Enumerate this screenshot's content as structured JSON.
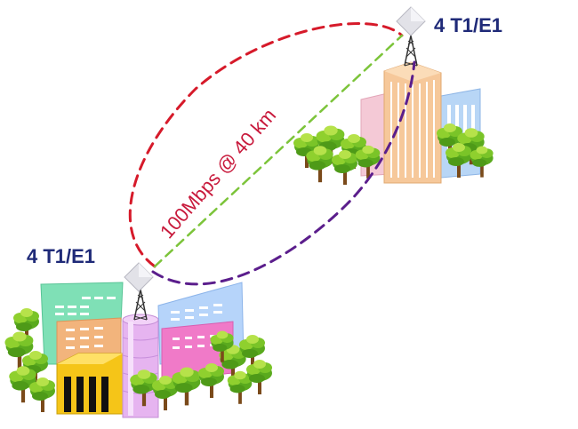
{
  "sites": {
    "remote": {
      "label": "4 T1/E1"
    },
    "local": {
      "label": "4 T1/E1"
    }
  },
  "link": {
    "label": "100Mbps @ 40 km"
  },
  "colors": {
    "fresnel_outer": "#d61a2a",
    "fresnel_inner": "#5b1e8c",
    "line_of_sight": "#7cc43a",
    "label_text": "#1f2a78",
    "link_text": "#c81a3c",
    "tree_green": "#66bb22",
    "tree_light": "#a6dd3a",
    "trunk": "#7a4a1a"
  },
  "icons": [
    "antenna-panel-icon",
    "radio-tower-icon",
    "tree-icon",
    "building-icon"
  ]
}
